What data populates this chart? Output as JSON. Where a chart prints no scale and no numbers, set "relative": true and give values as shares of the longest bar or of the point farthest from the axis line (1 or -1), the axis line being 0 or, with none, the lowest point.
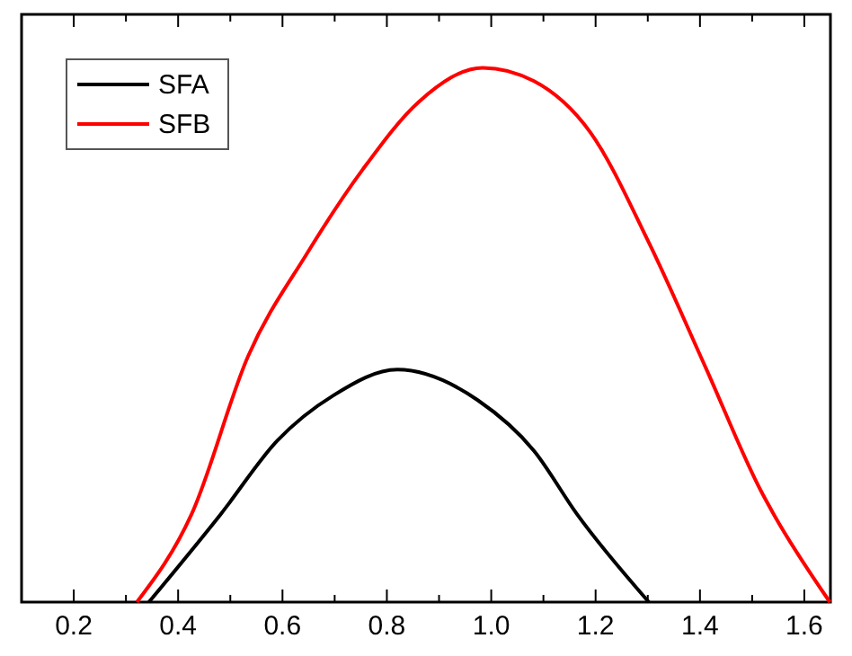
{
  "chart_data": {
    "type": "line",
    "relative": true,
    "xlim": [
      0.1,
      1.65
    ],
    "xticks": [
      0.2,
      {
        "value": 0.3,
        "label": null
      },
      0.4,
      {
        "value": 0.5,
        "label": null
      },
      0.6,
      {
        "value": 0.7,
        "label": null
      },
      0.8,
      {
        "value": 0.9,
        "label": null
      },
      {
        "value": 1.0,
        "label": "1.0"
      },
      {
        "value": 1.1,
        "label": null
      },
      1.2,
      {
        "value": 1.3,
        "label": null
      },
      1.4,
      {
        "value": 1.5,
        "label": null
      },
      1.6
    ],
    "legend": "top left",
    "line_style": "solid",
    "marker": "none",
    "series": [
      {
        "name": "SFA",
        "color": "#000000",
        "x": [
          0.344,
          0.482,
          0.59,
          0.698,
          0.82,
          0.974,
          1.082,
          1.164,
          1.302
        ],
        "values": [
          0,
          0.165,
          0.302,
          0.387,
          0.435,
          0.378,
          0.283,
          0.165,
          0
        ]
      },
      {
        "name": "SFB",
        "color": "#ff0000",
        "x": [
          0.321,
          0.426,
          0.534,
          0.646,
          0.754,
          0.862,
          0.984,
          1.082,
          1.19,
          1.302,
          1.41,
          1.518,
          1.541,
          1.649
        ],
        "values": [
          0,
          0.165,
          0.46,
          0.651,
          0.81,
          0.937,
          1,
          0.975,
          0.879,
          0.673,
          0.441,
          0.206,
          0.165,
          0
        ]
      }
    ]
  }
}
